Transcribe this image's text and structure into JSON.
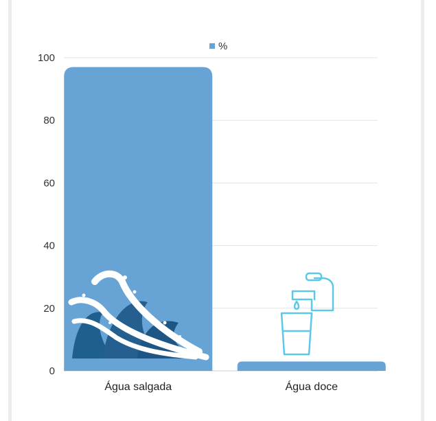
{
  "chart_data": {
    "type": "bar",
    "legend": {
      "label": "%",
      "position": "top"
    },
    "categories": [
      "Água salgada",
      "Água doce"
    ],
    "series": [
      {
        "name": "%",
        "values": [
          97,
          3
        ]
      }
    ],
    "ylim": [
      0,
      100
    ],
    "yticks": [
      "0",
      "20",
      "40",
      "60",
      "80",
      "100"
    ],
    "grid": true,
    "colors": {
      "bar": "#67a4d5",
      "grid": "#e3e3e3",
      "icon_stroke": "#5ac8e6",
      "wave_dark": "#1f5f8f",
      "wave_light": "#ffffff"
    },
    "icons": [
      "ocean-wave-icon",
      "faucet-glass-icon"
    ]
  }
}
